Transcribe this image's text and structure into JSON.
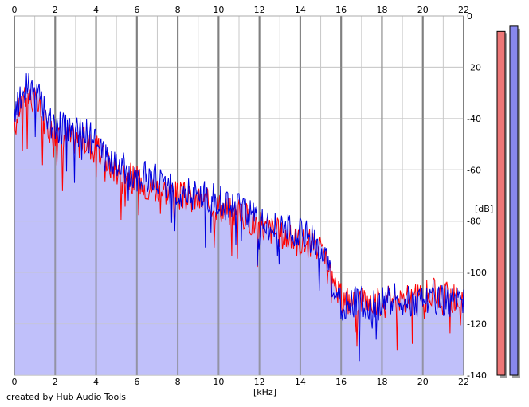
{
  "credit": "created by Hub Audio Tools",
  "chart_data": {
    "type": "line",
    "title": "",
    "xlabel": "[kHz]",
    "ylabel": "[dB]",
    "xlim": [
      0,
      22
    ],
    "ylim": [
      -140,
      0
    ],
    "x_ticks": [
      0,
      2,
      4,
      6,
      8,
      10,
      12,
      14,
      16,
      18,
      20,
      22
    ],
    "y_ticks": [
      0,
      -20,
      -40,
      -60,
      -80,
      -100,
      -120,
      -140
    ],
    "y_tick_labels": [
      "0",
      "-20",
      "-40",
      "-60",
      "-80",
      "-100",
      "-120",
      "-140"
    ],
    "grid": true,
    "colors": {
      "left_channel": "#ff0000",
      "right_channel": "#0000dd",
      "fill": "#c0c0fa",
      "grid_major": "#808080",
      "grid_minor": "#c8c8c8",
      "meter_left": "#ee7777",
      "meter_right": "#8888ee"
    },
    "series": [
      {
        "channel": "left",
        "x": [
          0,
          0.25,
          0.5,
          0.75,
          1,
          1.25,
          1.5,
          1.75,
          2,
          2.5,
          3,
          3.5,
          4,
          4.5,
          5,
          5.5,
          6,
          6.5,
          7,
          7.5,
          8,
          8.5,
          9,
          9.5,
          10,
          10.5,
          11,
          11.5,
          12,
          12.5,
          13,
          13.5,
          14,
          14.5,
          15,
          15.3,
          15.6,
          16,
          16.5,
          17,
          17.5,
          18,
          18.5,
          19,
          19.5,
          20,
          20.5,
          21,
          21.5,
          22
        ],
        "values": [
          -45,
          -35,
          -30,
          -32,
          -33,
          -36,
          -42,
          -44,
          -46,
          -47,
          -48,
          -49,
          -52,
          -57,
          -60,
          -62,
          -64,
          -66,
          -67,
          -68,
          -70,
          -71,
          -72,
          -73,
          -74,
          -76,
          -77,
          -79,
          -82,
          -83,
          -85,
          -87,
          -88,
          -89,
          -92,
          -98,
          -106,
          -110,
          -111,
          -110,
          -112,
          -111,
          -109,
          -110,
          -111,
          -109,
          -108,
          -109,
          -110,
          -111
        ]
      },
      {
        "channel": "right",
        "x": [
          0,
          0.25,
          0.5,
          0.75,
          1,
          1.25,
          1.5,
          1.75,
          2,
          2.5,
          3,
          3.5,
          4,
          4.5,
          5,
          5.5,
          6,
          6.5,
          7,
          7.5,
          8,
          8.5,
          9,
          9.5,
          10,
          10.5,
          11,
          11.5,
          12,
          12.5,
          13,
          13.5,
          14,
          14.5,
          15,
          15.3,
          15.6,
          16,
          16.5,
          17,
          17.5,
          18,
          18.5,
          19,
          19.5,
          20,
          20.5,
          21,
          21.5,
          22
        ],
        "values": [
          -40,
          -32,
          -28,
          -27,
          -29,
          -33,
          -38,
          -41,
          -43,
          -44,
          -45,
          -46,
          -50,
          -55,
          -58,
          -60,
          -62,
          -63,
          -64,
          -66,
          -68,
          -69,
          -70,
          -71,
          -72,
          -74,
          -75,
          -77,
          -80,
          -81,
          -83,
          -84,
          -85,
          -87,
          -90,
          -96,
          -108,
          -113,
          -112,
          -111,
          -113,
          -112,
          -110,
          -111,
          -112,
          -110,
          -110,
          -110,
          -112,
          -113
        ]
      }
    ],
    "levels_db": {
      "left": -6,
      "right": -4
    }
  }
}
